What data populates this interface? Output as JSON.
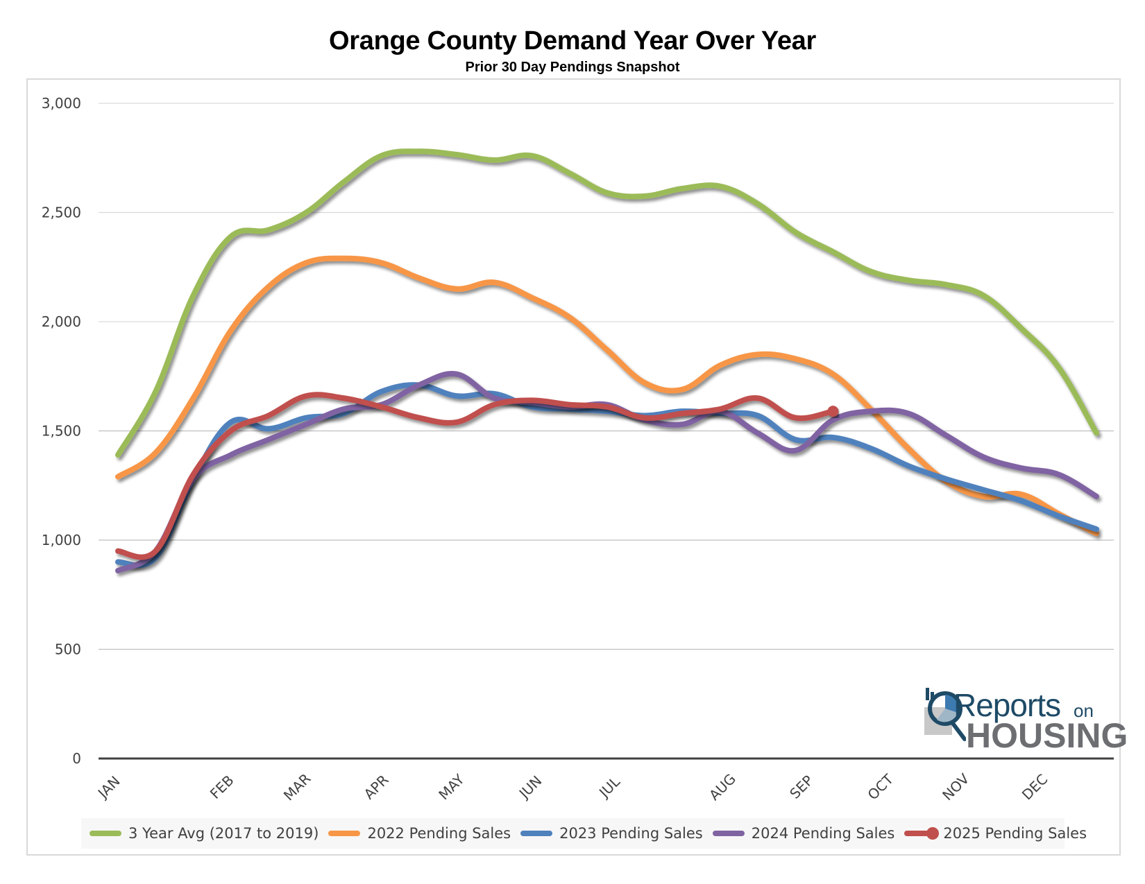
{
  "chart_data": {
    "type": "line",
    "title": "Orange County Demand Year Over Year",
    "subtitle": "Prior 30 Day Pendings Snapshot",
    "xlabel": "",
    "ylabel": "",
    "ylim": [
      0,
      3000
    ],
    "yticks": [
      0,
      500,
      1000,
      1500,
      2000,
      2500,
      3000
    ],
    "ytick_labels": [
      "0",
      "500",
      "1,000",
      "1,500",
      "2,000",
      "2,500",
      "3,000"
    ],
    "grid": true,
    "legend_position": "bottom",
    "x_points": 27,
    "month_labels": [
      {
        "label": "JAN",
        "pos": 0
      },
      {
        "label": "FEB",
        "pos": 3.0
      },
      {
        "label": "MAR",
        "pos": 5.0
      },
      {
        "label": "APR",
        "pos": 7.1
      },
      {
        "label": "MAY",
        "pos": 9.1
      },
      {
        "label": "JUN",
        "pos": 11.2
      },
      {
        "label": "JUL",
        "pos": 13.3
      },
      {
        "label": "AUG",
        "pos": 16.3
      },
      {
        "label": "SEP",
        "pos": 18.4
      },
      {
        "label": "OCT",
        "pos": 20.5
      },
      {
        "label": "NOV",
        "pos": 22.5
      },
      {
        "label": "DEC",
        "pos": 24.6
      }
    ],
    "series": [
      {
        "name": "3 Year Avg (2017 to 2019)",
        "color": "#9bbb59",
        "values": [
          1390,
          1680,
          2120,
          2390,
          2420,
          2500,
          2640,
          2760,
          2780,
          2765,
          2740,
          2760,
          2680,
          2590,
          2575,
          2610,
          2620,
          2540,
          2410,
          2320,
          2230,
          2190,
          2170,
          2120,
          1970,
          1790,
          1490
        ]
      },
      {
        "name": "2022 Pending Sales",
        "color": "#f79646",
        "values": [
          1290,
          1400,
          1650,
          1960,
          2160,
          2270,
          2290,
          2270,
          2200,
          2150,
          2180,
          2110,
          2020,
          1870,
          1720,
          1690,
          1800,
          1850,
          1830,
          1760,
          1600,
          1420,
          1270,
          1200,
          1210,
          1120,
          1030
        ]
      },
      {
        "name": "2023 Pending Sales",
        "color": "#4f81bd",
        "values": [
          900,
          920,
          1280,
          1540,
          1510,
          1560,
          1580,
          1680,
          1710,
          1660,
          1670,
          1610,
          1600,
          1590,
          1570,
          1590,
          1580,
          1570,
          1460,
          1470,
          1420,
          1340,
          1280,
          1230,
          1180,
          1110,
          1050
        ]
      },
      {
        "name": "2024 Pending Sales",
        "color": "#8064a2",
        "values": [
          860,
          950,
          1280,
          1390,
          1460,
          1530,
          1600,
          1620,
          1710,
          1760,
          1650,
          1630,
          1610,
          1620,
          1550,
          1530,
          1590,
          1490,
          1410,
          1550,
          1590,
          1580,
          1480,
          1380,
          1330,
          1300,
          1200
        ]
      },
      {
        "name": "2025 Pending Sales",
        "color": "#c0504d",
        "end_marker": true,
        "values": [
          950,
          950,
          1300,
          1500,
          1570,
          1660,
          1650,
          1610,
          1560,
          1540,
          1620,
          1640,
          1620,
          1610,
          1560,
          1580,
          1600,
          1650,
          1560,
          1590
        ]
      }
    ]
  },
  "logo": {
    "reports": "Reports",
    "on": "on",
    "housing": "HOUSING"
  }
}
